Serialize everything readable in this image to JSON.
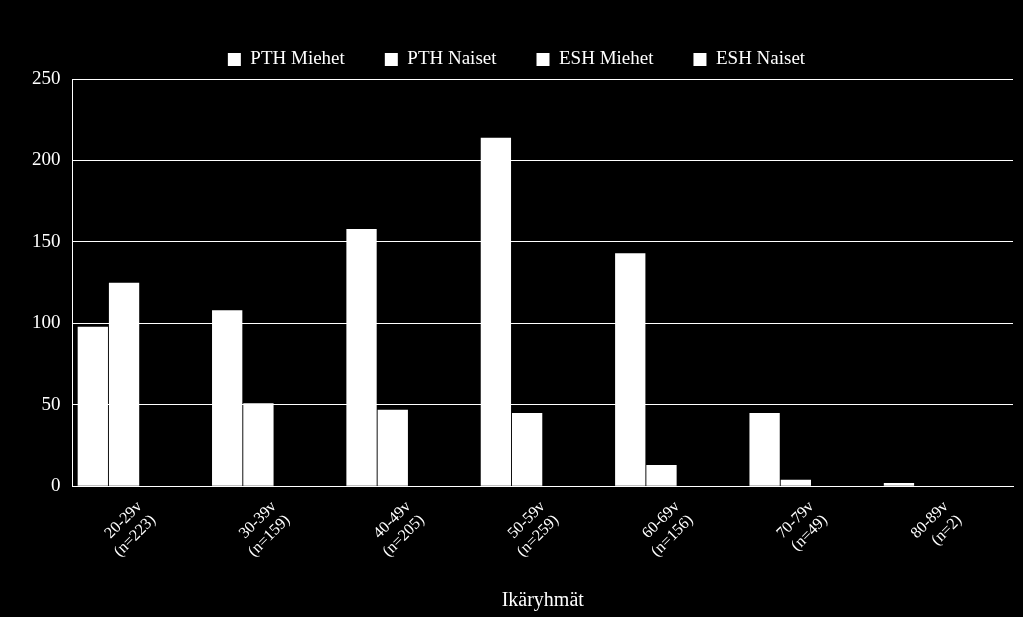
{
  "chart_data": {
    "type": "bar",
    "xlabel": "Ikäryhmät",
    "categories": [
      "20-29v\n(n=223)",
      "30-39v\n(n=159)",
      "40-49v\n(n=205)",
      "50-59v\n(n=259)",
      "60-69v\n(n=156)",
      "70-79v\n(n=49)",
      "80-89v\n(n=2)"
    ],
    "series": [
      {
        "name": "PTH Miehet",
        "color": "#ffffff",
        "values": [
          98,
          108,
          158,
          214,
          143,
          45,
          2
        ]
      },
      {
        "name": "PTH Naiset",
        "color": "#ffffff",
        "values": [
          125,
          51,
          47,
          45,
          13,
          4,
          0
        ]
      },
      {
        "name": "ESH Miehet",
        "color": "#ffffff",
        "values": [
          null,
          null,
          null,
          null,
          null,
          null,
          null
        ]
      },
      {
        "name": "ESH Naiset",
        "color": "#ffffff",
        "values": [
          null,
          null,
          null,
          null,
          null,
          null,
          null
        ]
      }
    ],
    "ylim": [
      0,
      250
    ],
    "yticks": [
      0,
      50,
      100,
      150,
      200,
      250
    ],
    "grid": "y",
    "legend": "top"
  }
}
